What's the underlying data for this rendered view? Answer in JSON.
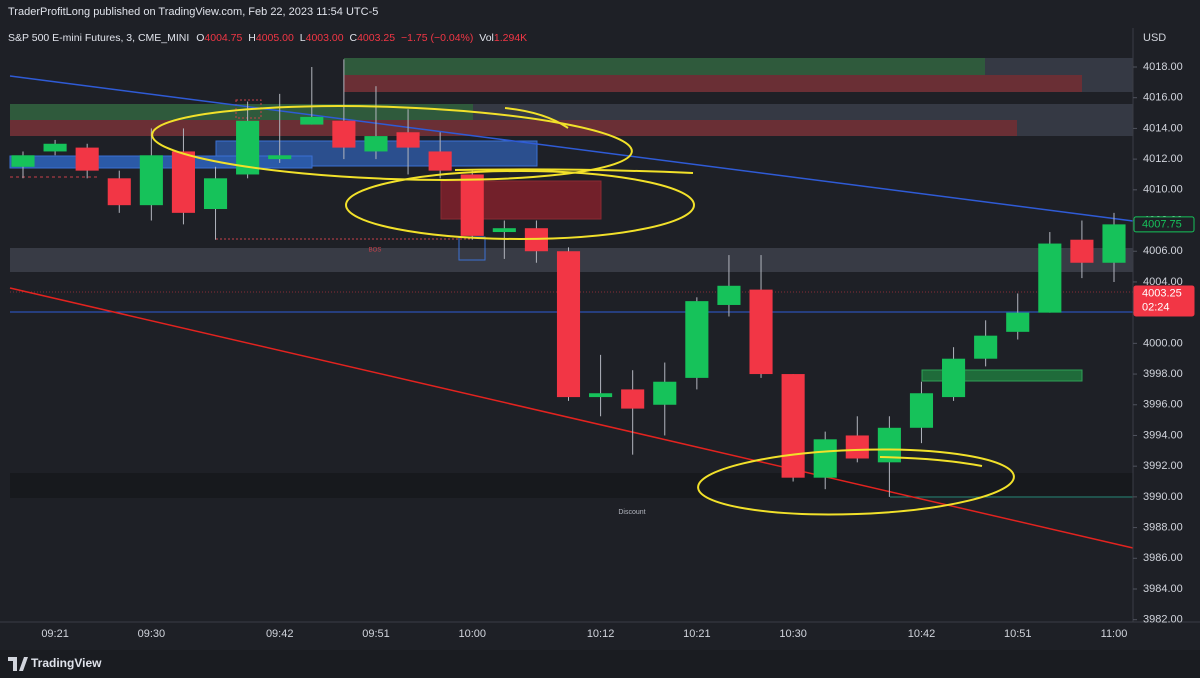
{
  "header": {
    "publisher": "TraderProfitLong published on TradingView.com, Feb 22, 2023 11:54 UTC-5",
    "symbol": "S&P 500 E-mini Futures, 3, CME_MINI",
    "ohlc": [
      {
        "label": "O",
        "value": "4004.75"
      },
      {
        "label": "H",
        "value": "4005.00"
      },
      {
        "label": "L",
        "value": "4003.00"
      },
      {
        "label": "C",
        "value": "4003.25"
      }
    ],
    "change": "−1.75 (−0.04%)",
    "vol_label": "Vol",
    "vol_value": "1.294K"
  },
  "footer": {
    "brand": "TradingView"
  },
  "chart_data": {
    "type": "candlestick",
    "currency": "USD",
    "up_color": "#16c25a",
    "down_color": "#f23645",
    "categories": [
      null,
      "09:21",
      null,
      null,
      "09:30",
      null,
      null,
      null,
      "09:42",
      null,
      null,
      "09:51",
      null,
      null,
      "10:00",
      null,
      null,
      null,
      "10:12",
      null,
      null,
      "10:21",
      null,
      null,
      "10:30",
      null,
      null,
      null,
      "10:42",
      null,
      null,
      "10:51",
      null,
      null,
      "11:00"
    ],
    "open": [
      4011.5,
      4012.5,
      4012.75,
      4010.75,
      4009,
      4012.5,
      4008.75,
      4011,
      4012,
      4014.25,
      4014.5,
      4012.5,
      4013.75,
      4012.5,
      4011,
      4007.25,
      4007.5,
      4006,
      3996.5,
      3997,
      3996,
      3997.75,
      4002.5,
      4003.5,
      3998,
      3991.25,
      3994,
      3992.25,
      3994.5,
      3996.5,
      3999,
      4000.75,
      4002,
      4006.75,
      4005.25
    ],
    "high": [
      4012.5,
      4013.25,
      4013,
      4011.25,
      4014,
      4014,
      4011.5,
      4015.75,
      4016.25,
      4018,
      4018.5,
      4016.75,
      4015.25,
      4013.75,
      4011.25,
      4008,
      4008,
      4006.25,
      3999.25,
      3998.25,
      3998.75,
      4003,
      4005.75,
      4005.75,
      3998,
      3994.25,
      3995.25,
      3995.25,
      3997.5,
      3999.75,
      4001.5,
      4003.25,
      4007.25,
      4008,
      4008.5
    ],
    "low": [
      4010.75,
      4012.25,
      4010.75,
      4008.5,
      4008,
      4007.75,
      4006.75,
      4010.75,
      4011.75,
      4014.25,
      4012,
      4012,
      4011,
      4010.75,
      4006.75,
      4005.5,
      4005.25,
      3996.25,
      3995.25,
      3992.75,
      3994,
      3997,
      4001.75,
      3997.75,
      3991,
      3990.5,
      3992.25,
      3990,
      3993.5,
      3996.25,
      3998.5,
      4000.25,
      4002,
      4004.25,
      4004
    ],
    "close": [
      4012.25,
      4013,
      4011.25,
      4009,
      4012.25,
      4008.5,
      4010.75,
      4014.5,
      4012.25,
      4014.75,
      4012.75,
      4013.5,
      4012.75,
      4011.25,
      4007,
      4007.5,
      4006,
      3996.5,
      3996.75,
      3995.75,
      3997.5,
      4002.75,
      4003.75,
      3998,
      3991.25,
      3993.75,
      3992.5,
      3994.5,
      3996.75,
      3999,
      4000.5,
      4002,
      4006.5,
      4005.25,
      4007.75
    ],
    "ylim": [
      3981.85,
      4020.41
    ],
    "yticks": [
      {
        "value": 3982,
        "label": "3982.00"
      },
      {
        "value": 3984,
        "label": "3984.00"
      },
      {
        "value": 3986,
        "label": "3986.00"
      },
      {
        "value": 3988,
        "label": "3988.00"
      },
      {
        "value": 3990,
        "label": "3990.00"
      },
      {
        "value": 3992,
        "label": "3992.00"
      },
      {
        "value": 3994,
        "label": "3994.00"
      },
      {
        "value": 3996,
        "label": "3996.00"
      },
      {
        "value": 3998,
        "label": "3998.00"
      },
      {
        "value": 4000,
        "label": "4000.00"
      },
      {
        "value": 4002,
        "label": "4002.00"
      },
      {
        "value": 4004,
        "label": "4004.00"
      },
      {
        "value": 4006,
        "label": "4006.00"
      },
      {
        "value": 4008,
        "label": "4008.00"
      },
      {
        "value": 4010,
        "label": "4010.00"
      },
      {
        "value": 4012,
        "label": "4012.00"
      },
      {
        "value": 4014,
        "label": "4014.00"
      },
      {
        "value": 4016,
        "label": "4016.00"
      },
      {
        "value": 4018,
        "label": "4018.00"
      }
    ],
    "price_labels": [
      {
        "value": 4007.75,
        "label": "4007.75",
        "color": "#16c25a",
        "style": "outline"
      },
      {
        "value": 4003.25,
        "label": "4003.25",
        "countdown": "02:24",
        "color": "#f23645",
        "style": "filled"
      }
    ],
    "annotations": [
      {
        "text": "BOS"
      },
      {
        "text": "Discount"
      }
    ]
  }
}
